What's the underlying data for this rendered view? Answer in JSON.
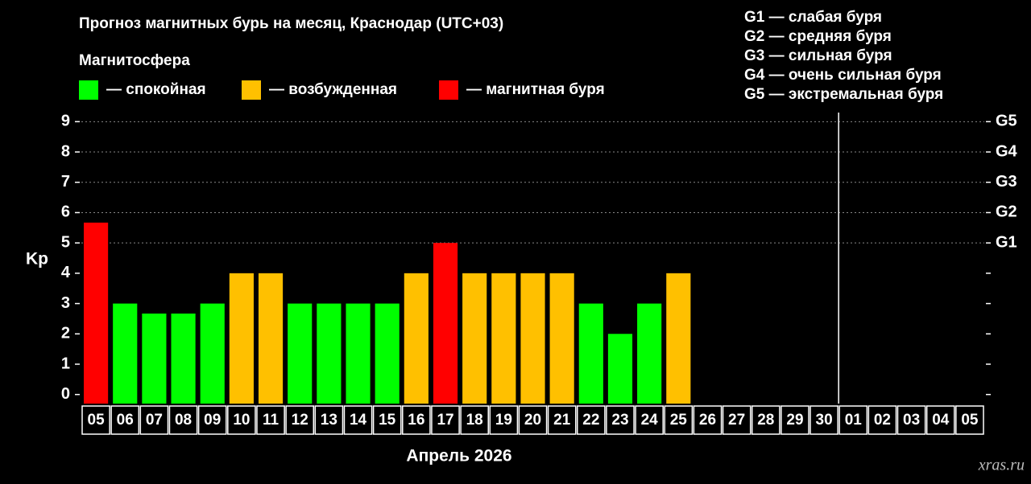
{
  "chart_data": {
    "type": "bar",
    "title": "Прогноз магнитных бурь на месяц, Краснодар (UTC+03)",
    "legend_title": "Магнитосфера",
    "legend": [
      {
        "name": "— спокойная",
        "color": "#00ff00"
      },
      {
        "name": "— возбужденная",
        "color": "#ffc000"
      },
      {
        "name": "— магнитная буря",
        "color": "#ff0000"
      }
    ],
    "scale_notes": [
      "G1 — слабая буря",
      "G2 — средняя буря",
      "G3 — сильная буря",
      "G4 — очень сильная буря",
      "G5 — экстремальная буря"
    ],
    "ylabel": "Kp",
    "xlabel": "Апрель 2026",
    "watermark": "xras.ru",
    "categories": [
      "05",
      "06",
      "07",
      "08",
      "09",
      "10",
      "11",
      "12",
      "13",
      "14",
      "15",
      "16",
      "17",
      "18",
      "19",
      "20",
      "21",
      "22",
      "23",
      "24",
      "25",
      "26",
      "27",
      "28",
      "29",
      "30",
      "01",
      "02",
      "03",
      "04",
      "05"
    ],
    "values": [
      5.67,
      3,
      2.67,
      2.67,
      3,
      4,
      4,
      3,
      3,
      3,
      3,
      4,
      5,
      4,
      4,
      4,
      4,
      3,
      2,
      3,
      4,
      null,
      null,
      null,
      null,
      null,
      null,
      null,
      null,
      null,
      null
    ],
    "colors": [
      "#ff0000",
      "#00ff00",
      "#00ff00",
      "#00ff00",
      "#00ff00",
      "#ffc000",
      "#ffc000",
      "#00ff00",
      "#00ff00",
      "#00ff00",
      "#00ff00",
      "#ffc000",
      "#ff0000",
      "#ffc000",
      "#ffc000",
      "#ffc000",
      "#ffc000",
      "#00ff00",
      "#00ff00",
      "#00ff00",
      "#ffc000",
      null,
      null,
      null,
      null,
      null,
      null,
      null,
      null,
      null,
      null
    ],
    "ylim": [
      -0.3,
      9.3
    ],
    "yticks": [
      0,
      1,
      2,
      3,
      4,
      5,
      6,
      7,
      8,
      9
    ],
    "y2lim": [
      -0.3,
      9.3
    ],
    "y2ticks": [
      {
        "value": 5,
        "label": "G1"
      },
      {
        "value": 6,
        "label": "G2"
      },
      {
        "value": 7,
        "label": "G3"
      },
      {
        "value": 8,
        "label": "G4"
      },
      {
        "value": 9,
        "label": "G5"
      }
    ],
    "grid": true
  }
}
